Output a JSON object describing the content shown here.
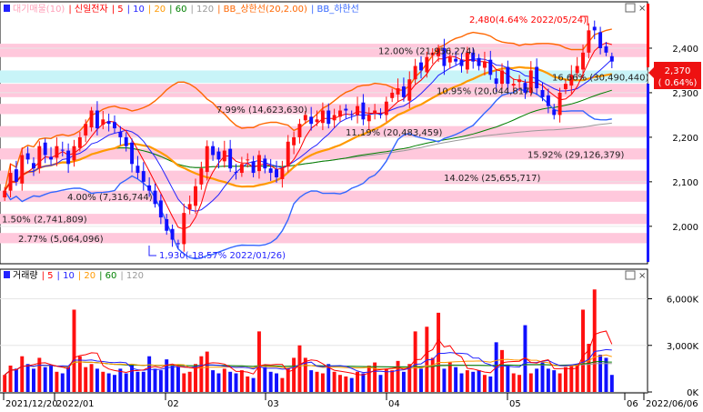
{
  "colors": {
    "up": "#ff1010",
    "down": "#1010ff",
    "ma5": "#ff0000",
    "ma10": "#2222ff",
    "ma20": "#ff9900",
    "ma60": "#008000",
    "ma120": "#999999",
    "bb_upper": "#ff6600",
    "bb_lower": "#3366ff",
    "volume_profile": "#ffc8dc",
    "current_profile": "#c8f4f8",
    "price_tag": "#ee1111"
  },
  "price_legend": [
    {
      "text": "대기매물(10)",
      "color": "#ff9fb8"
    },
    {
      "text": "| 신일전자",
      "color": "#ff0000"
    },
    {
      "text": "| 5",
      "color": "#ff0000"
    },
    {
      "text": "| 10",
      "color": "#2222ff"
    },
    {
      "text": "| 20",
      "color": "#ff9900"
    },
    {
      "text": "| 60",
      "color": "#008000"
    },
    {
      "text": "| 120",
      "color": "#999999"
    },
    {
      "text": "| BB_상한선(20,2.00)",
      "color": "#ff6600"
    },
    {
      "text": "| BB_하한선",
      "color": "#3366ff"
    }
  ],
  "volume_legend": [
    {
      "text": "거래량",
      "color": "#000000"
    },
    {
      "text": "| 5",
      "color": "#ff0000"
    },
    {
      "text": "| 10",
      "color": "#2222ff"
    },
    {
      "text": "| 20",
      "color": "#ff9900"
    },
    {
      "text": "| 60",
      "color": "#008000"
    },
    {
      "text": "| 120",
      "color": "#999999"
    }
  ],
  "price_axis": {
    "ticks": [
      "2,400",
      "2,300",
      "2,200",
      "2,100",
      "2,000"
    ],
    "tick_values": [
      2400,
      2300,
      2200,
      2100,
      2000
    ],
    "ylim": [
      1920,
      2500
    ]
  },
  "volume_axis": {
    "ticks": [
      "6,000K",
      "3,000K",
      "0K"
    ],
    "tick_values": [
      6000,
      3000,
      0
    ],
    "ylim": [
      0,
      7200
    ]
  },
  "x_axis": {
    "labels": [
      "2021/12/20",
      "2022/01",
      "02",
      "03",
      "04",
      "05",
      "06",
      "2022/06/06"
    ]
  },
  "current_price": {
    "value": "2,370",
    "change": "( 0.64%)"
  },
  "annotations": {
    "high": "2,480(4.64% 2022/05/24)",
    "low": "1,930(-18.57% 2022/01/26)"
  },
  "chart_data": {
    "type": "candlestick",
    "price_ylim": [
      1920,
      2500
    ],
    "profile_bands": [
      {
        "low": 2380,
        "high": 2410,
        "label": "12.00% (21,956,274)"
      },
      {
        "low": 2322,
        "high": 2350,
        "label": "16.66% (30,490,440)",
        "current": true
      },
      {
        "low": 2290,
        "high": 2320,
        "label": "10.95% (20,044,817)"
      },
      {
        "low": 2252,
        "high": 2275,
        "label": "7.99% (14,623,630)"
      },
      {
        "low": 2200,
        "high": 2225,
        "label": "11.19% (20,483,459)"
      },
      {
        "low": 2150,
        "high": 2175,
        "label": "15.92% (29,126,379)"
      },
      {
        "low": 2095,
        "high": 2125,
        "label": "14.02% (25,655,717)"
      },
      {
        "low": 2055,
        "high": 2080,
        "label": "4.00% (7,316,744)"
      },
      {
        "low": 2005,
        "high": 2028,
        "label": "1.50% (2,741,809)"
      },
      {
        "low": 1962,
        "high": 1985,
        "label": "2.77% (5,064,096)"
      }
    ],
    "close": [
      2080,
      2120,
      2100,
      2160,
      2150,
      2130,
      2180,
      2160,
      2150,
      2180,
      2170,
      2140,
      2180,
      2200,
      2230,
      2260,
      2220,
      2240,
      2230,
      2220,
      2200,
      2180,
      2140,
      2120,
      2100,
      2080,
      2050,
      2020,
      1990,
      1970,
      1960,
      2030,
      2050,
      2090,
      2130,
      2180,
      2160,
      2150,
      2170,
      2130,
      2120,
      2140,
      2150,
      2120,
      2160,
      2130,
      2120,
      2110,
      2130,
      2190,
      2200,
      2230,
      2250,
      2230,
      2240,
      2260,
      2230,
      2250,
      2260,
      2260,
      2250,
      2270,
      2240,
      2250,
      2260,
      2250,
      2280,
      2300,
      2310,
      2290,
      2330,
      2360,
      2350,
      2380,
      2390,
      2400,
      2360,
      2380,
      2370,
      2360,
      2390,
      2370,
      2360,
      2370,
      2340,
      2320,
      2350,
      2320,
      2320,
      2330,
      2300,
      2350,
      2310,
      2290,
      2270,
      2250,
      2300,
      2320,
      2340,
      2360,
      2390,
      2440,
      2440,
      2400,
      2390,
      2370
    ],
    "volume": [
      1100,
      1700,
      1500,
      2300,
      1800,
      1500,
      2200,
      1600,
      1700,
      1300,
      1200,
      1600,
      5300,
      2300,
      1600,
      1800,
      1500,
      1300,
      1200,
      1100,
      1500,
      1200,
      1800,
      1300,
      1300,
      2300,
      1500,
      1400,
      2100,
      1700,
      1600,
      1200,
      1300,
      1800,
      2300,
      2600,
      1400,
      1200,
      1500,
      1300,
      1200,
      1400,
      1000,
      900,
      3900,
      1600,
      1300,
      1200,
      900,
      1500,
      2200,
      3000,
      2200,
      1400,
      1300,
      1200,
      1800,
      1300,
      1100,
      1000,
      900,
      1300,
      1200,
      1700,
      1900,
      1100,
      1500,
      1400,
      2000,
      1300,
      1800,
      3900,
      1500,
      4200,
      2200,
      5100,
      1500,
      1900,
      1600,
      1200,
      1400,
      1300,
      1400,
      1100,
      1000,
      3200,
      2700,
      1700,
      1200,
      1100,
      4300,
      1200,
      1500,
      1900,
      1500,
      1400,
      1200,
      1600,
      1700,
      1800,
      5300,
      3100,
      6600,
      2400,
      2200,
      1100
    ]
  }
}
